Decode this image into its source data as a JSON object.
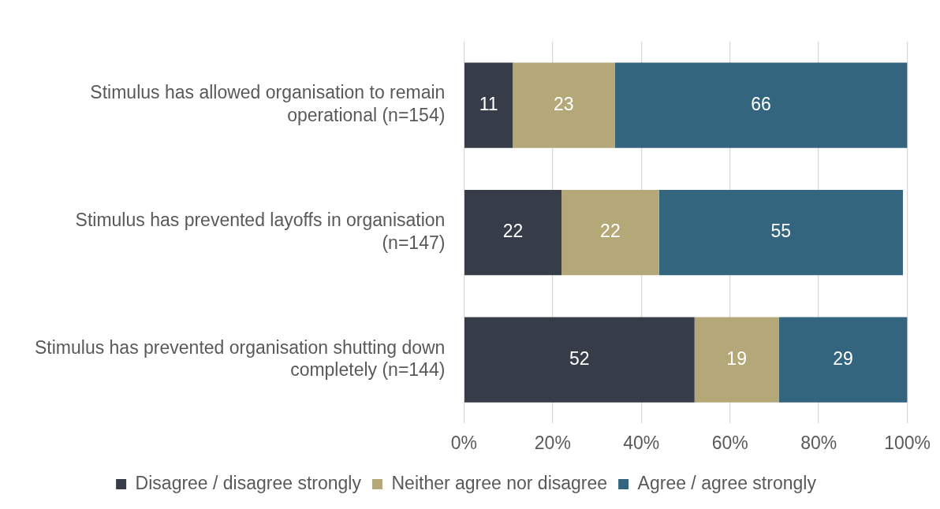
{
  "chart_data": {
    "type": "bar",
    "orientation": "horizontal",
    "stacked": true,
    "categories": [
      "Stimulus has allowed organisation to remain operational (n=154)",
      "Stimulus has prevented layoffs in organisation (n=147)",
      "Stimulus has prevented organisation shutting down completely (n=144)"
    ],
    "series": [
      {
        "name": "Disagree / disagree strongly",
        "color": "#363d48",
        "values": [
          11,
          22,
          52
        ]
      },
      {
        "name": "Neither agree nor disagree",
        "color": "#b5a878",
        "values": [
          23,
          22,
          19
        ]
      },
      {
        "name": "Agree / agree strongly",
        "color": "#33657e",
        "values": [
          66,
          55,
          29
        ]
      }
    ],
    "xlim": [
      0,
      100
    ],
    "xticks": [
      {
        "value": 0,
        "label": "0%"
      },
      {
        "value": 20,
        "label": "20%"
      },
      {
        "value": 40,
        "label": "40%"
      },
      {
        "value": 60,
        "label": "60%"
      },
      {
        "value": 80,
        "label": "80%"
      },
      {
        "value": 100,
        "label": "100%"
      }
    ],
    "grid": "x",
    "legend": "bottom",
    "data_labels": true
  }
}
